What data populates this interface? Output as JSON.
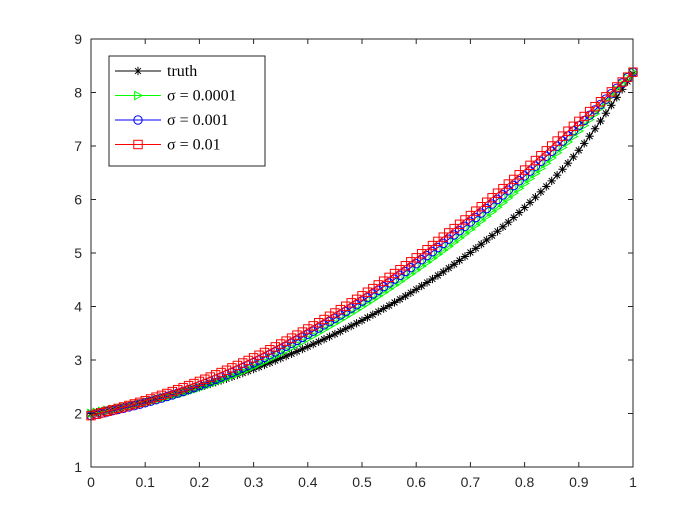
{
  "chart_data": {
    "type": "line",
    "title": "",
    "xlabel": "",
    "ylabel": "",
    "xlim": [
      0,
      1
    ],
    "ylim": [
      1,
      9
    ],
    "xticks": [
      "0",
      "0.1",
      "0.2",
      "0.3",
      "0.4",
      "0.5",
      "0.6",
      "0.7",
      "0.8",
      "0.9",
      "1"
    ],
    "yticks": [
      "1",
      "2",
      "3",
      "4",
      "5",
      "6",
      "7",
      "8",
      "9"
    ],
    "grid": false,
    "legend_position": "top-left",
    "x_samples": 101,
    "series": [
      {
        "name": "truth",
        "color": "#000000",
        "marker": "asterisk",
        "x": [
          0,
          0.1,
          0.2,
          0.3,
          0.4,
          0.5,
          0.6,
          0.7,
          0.8,
          0.9,
          1.0
        ],
        "values": [
          2.0,
          2.21,
          2.49,
          2.83,
          3.25,
          3.74,
          4.32,
          5.01,
          5.85,
          6.92,
          8.35
        ]
      },
      {
        "name": "σ = 0.0001",
        "color": "#00ff00",
        "marker": "triangle-right",
        "x": [
          0,
          0.1,
          0.2,
          0.3,
          0.4,
          0.5,
          0.6,
          0.7,
          0.8,
          0.9,
          1.0
        ],
        "values": [
          2.0,
          2.2,
          2.48,
          2.88,
          3.4,
          4.0,
          4.68,
          5.44,
          6.3,
          7.28,
          8.38
        ]
      },
      {
        "name": "σ = 0.001",
        "color": "#0000ff",
        "marker": "circle",
        "x": [
          0,
          0.1,
          0.2,
          0.3,
          0.4,
          0.5,
          0.6,
          0.7,
          0.8,
          0.9,
          1.0
        ],
        "values": [
          1.96,
          2.2,
          2.52,
          2.95,
          3.48,
          4.1,
          4.8,
          5.58,
          6.44,
          7.38,
          8.38
        ]
      },
      {
        "name": "σ = 0.01",
        "color": "#ff0000",
        "marker": "square",
        "x": [
          0,
          0.1,
          0.2,
          0.3,
          0.4,
          0.5,
          0.6,
          0.7,
          0.8,
          0.9,
          1.0
        ],
        "values": [
          1.96,
          2.24,
          2.6,
          3.04,
          3.58,
          4.2,
          4.91,
          5.7,
          6.55,
          7.46,
          8.38
        ]
      }
    ]
  }
}
